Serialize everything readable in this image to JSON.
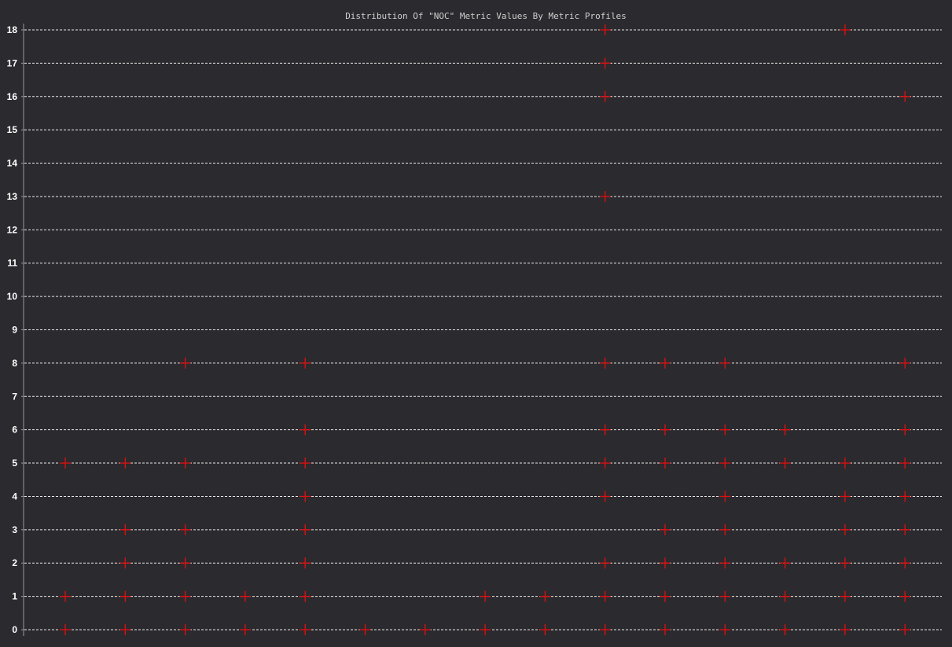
{
  "chart_data": {
    "type": "scatter",
    "title": "Distribution Of \"NOC\" Metric Values By Metric Profiles",
    "xlabel": "",
    "ylabel": "",
    "ylim": [
      0,
      18
    ],
    "yticks": [
      0,
      1,
      2,
      3,
      4,
      5,
      6,
      7,
      8,
      9,
      10,
      11,
      12,
      13,
      14,
      15,
      16,
      17,
      18
    ],
    "grid": true,
    "marker": "plus",
    "marker_color": "#e01010",
    "profile_count": 15,
    "profiles": [
      {
        "index": 1,
        "values": [
          0,
          1,
          5
        ]
      },
      {
        "index": 2,
        "values": [
          0,
          1,
          2,
          3,
          5
        ]
      },
      {
        "index": 3,
        "values": [
          0,
          1,
          2,
          3,
          5,
          8
        ]
      },
      {
        "index": 4,
        "values": [
          0,
          1
        ]
      },
      {
        "index": 5,
        "values": [
          0,
          1,
          2,
          3,
          4,
          5,
          6,
          8
        ]
      },
      {
        "index": 6,
        "values": [
          0
        ]
      },
      {
        "index": 7,
        "values": [
          0
        ]
      },
      {
        "index": 8,
        "values": [
          0,
          1
        ]
      },
      {
        "index": 9,
        "values": [
          0,
          1
        ]
      },
      {
        "index": 10,
        "values": [
          0,
          1,
          2,
          4,
          5,
          6,
          8,
          13,
          16,
          17,
          18
        ]
      },
      {
        "index": 11,
        "values": [
          0,
          1,
          2,
          3,
          5,
          6,
          8
        ]
      },
      {
        "index": 12,
        "values": [
          0,
          1,
          2,
          3,
          4,
          5,
          6,
          8
        ]
      },
      {
        "index": 13,
        "values": [
          0,
          1,
          2,
          5,
          6
        ]
      },
      {
        "index": 14,
        "values": [
          0,
          1,
          2,
          3,
          4,
          5,
          18
        ]
      },
      {
        "index": 15,
        "values": [
          0,
          1,
          2,
          3,
          4,
          5,
          6,
          8,
          16
        ]
      }
    ]
  },
  "colors": {
    "background": "#2b2a2e",
    "grid": "#e8e8e8",
    "axis": "#9a9a9a",
    "marker": "#e01010",
    "text": "#ffffff"
  }
}
